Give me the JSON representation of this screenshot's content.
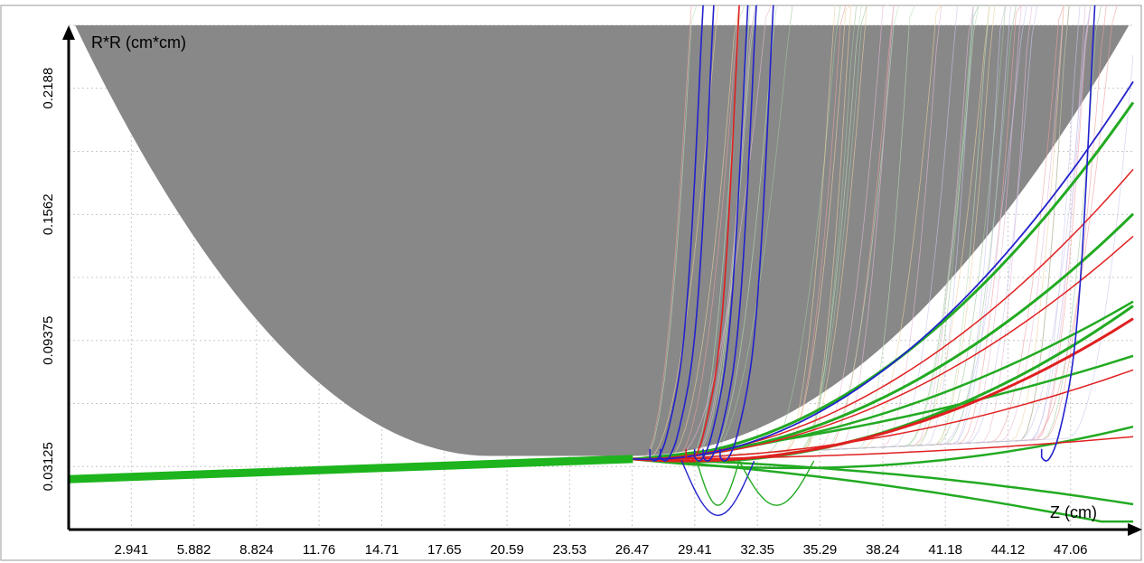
{
  "chart_data": {
    "type": "line",
    "title": "",
    "xlabel": "Z (cm)",
    "ylabel": "R*R (cm*cm)",
    "xlim": [
      0,
      50
    ],
    "ylim": [
      0,
      0.25
    ],
    "x_ticks": [
      "2.941",
      "5.882",
      "8.824",
      "11.76",
      "14.71",
      "17.65",
      "20.59",
      "23.53",
      "26.47",
      "29.41",
      "32.35",
      "35.29",
      "38.24",
      "41.18",
      "44.12",
      "47.06"
    ],
    "y_ticks": [
      "0.03125",
      "0.09375",
      "0.1562",
      "0.2188"
    ],
    "grid": true,
    "legend": "none",
    "colors": {
      "envelope": "#888888",
      "beam": "#1db41d",
      "red_tracks": "#e02020",
      "blue_tracks": "#2222cc",
      "green_tracks": "#22aa22",
      "grid": "#c8c8c8"
    },
    "series": [
      {
        "name": "",
        "color": "#1db41d",
        "x": [
          0,
          26.5
        ],
        "y": [
          0.025,
          0.035
        ]
      }
    ]
  }
}
